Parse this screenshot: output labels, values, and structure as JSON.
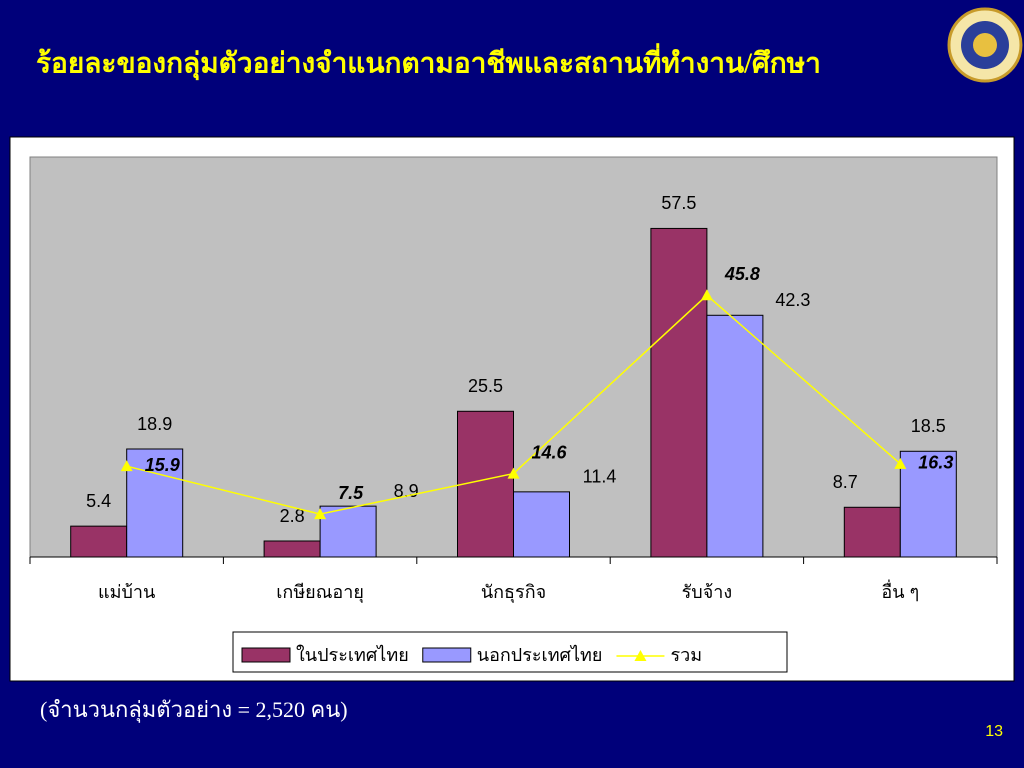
{
  "chart_data": {
    "type": "bar",
    "title": "ร้อยละของกลุ่มตัวอย่างจำแนกตามอาชีพและสถานที่ทำงาน/ศึกษา",
    "categories": [
      "แม่บ้าน",
      "เกษียณอายุ",
      "นักธุรกิจ",
      "รับจ้าง",
      "อื่น ๆ"
    ],
    "series": [
      {
        "name": "ในประเทศไทย",
        "color": "#993366",
        "values": [
          5.4,
          2.8,
          25.5,
          57.5,
          8.7
        ]
      },
      {
        "name": "นอกประเทศไทย",
        "color": "#9999ff",
        "values": [
          18.9,
          8.9,
          11.4,
          42.3,
          18.5
        ]
      },
      {
        "name": "รวม",
        "color": "#ffff00",
        "type": "line",
        "values": [
          15.9,
          7.5,
          14.6,
          45.8,
          16.3
        ]
      }
    ],
    "ylim": [
      0,
      70
    ],
    "note": "(จำนวนกลุ่มตัวอย่าง = 2,520 คน)"
  },
  "slide": {
    "page_number": "13"
  }
}
